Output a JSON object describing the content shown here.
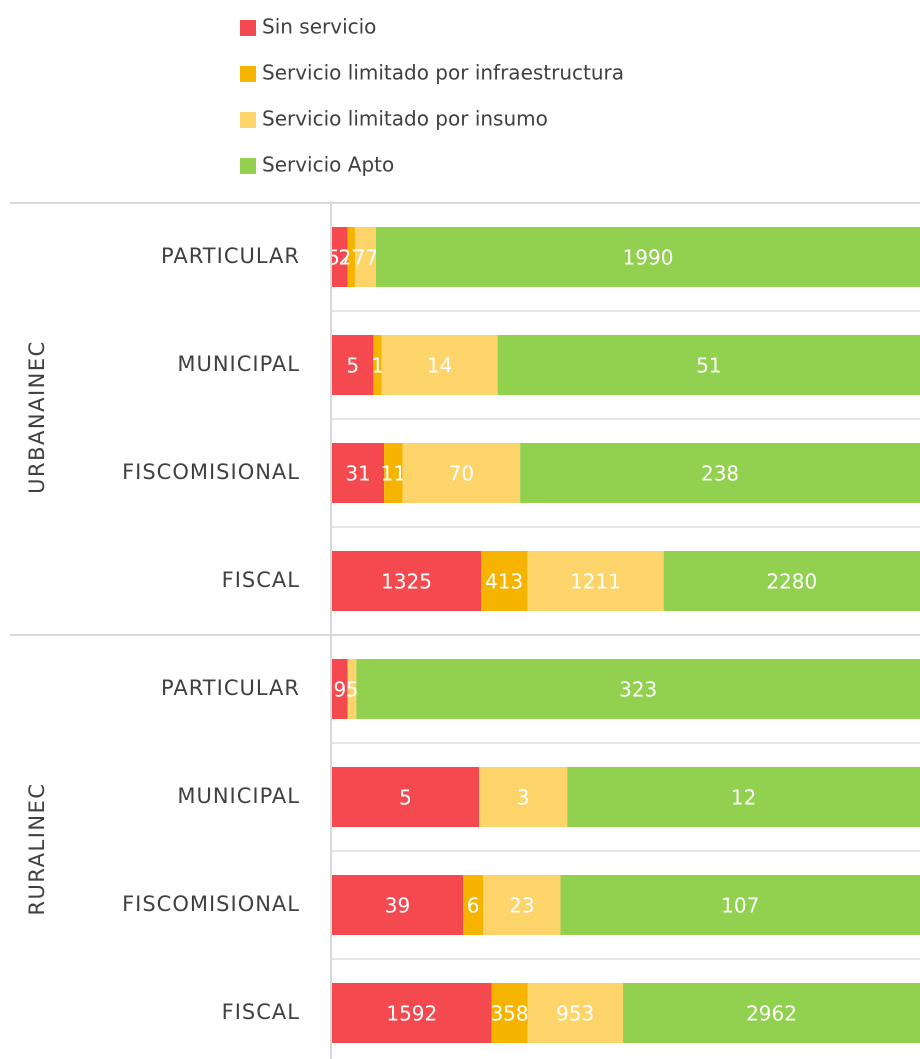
{
  "chart_data": {
    "type": "bar",
    "orientation": "horizontal",
    "stacking": "percent",
    "groups": [
      {
        "label": "URBANAINEC",
        "categories": [
          "PARTICULAR",
          "MUNICIPAL",
          "FISCOMISIONAL",
          "FISCAL"
        ]
      },
      {
        "label": "RURALINEC",
        "categories": [
          "PARTICULAR",
          "MUNICIPAL",
          "FISCOMISIONAL",
          "FISCAL"
        ]
      }
    ],
    "series": [
      {
        "name": "Sin servicio",
        "color": "#f4494f",
        "values": [
          57,
          5,
          31,
          1325,
          9,
          5,
          39,
          1592
        ]
      },
      {
        "name": "Servicio limitado por infraestructura",
        "color": "#f6b400",
        "values": [
          27,
          1,
          11,
          413,
          null,
          null,
          6,
          358
        ]
      },
      {
        "name": "Servicio limitado por insumo",
        "color": "#fdd46a",
        "values": [
          77,
          14,
          70,
          1211,
          5,
          3,
          23,
          953
        ]
      },
      {
        "name": "Servicio Apto",
        "color": "#92d050",
        "values": [
          1990,
          51,
          238,
          2280,
          323,
          12,
          107,
          2962
        ]
      }
    ]
  }
}
